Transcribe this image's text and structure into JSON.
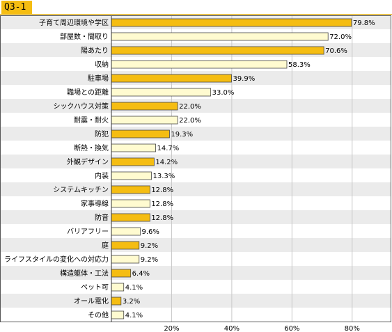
{
  "badge": "Q3-1",
  "colors": {
    "accent": "#f5bd12",
    "light": "#fffbd0",
    "band": "#ebebeb",
    "border": "#555555",
    "grid": "#c8c8c8"
  },
  "chart_data": {
    "type": "bar",
    "orientation": "horizontal",
    "title": "",
    "xlabel": "",
    "ylabel": "",
    "xlim": [
      0,
      90
    ],
    "xticks": [
      20,
      40,
      60,
      80
    ],
    "xtick_labels": [
      "20%",
      "40%",
      "60%",
      "80%"
    ],
    "grid": true,
    "categories": [
      "子育て周辺環境や学区",
      "部屋数・間取り",
      "陽あたり",
      "収納",
      "駐車場",
      "職場との距離",
      "シックハウス対策",
      "耐震・耐火",
      "防犯",
      "断熱・換気",
      "外観デザイン",
      "内装",
      "システムキッチン",
      "家事導線",
      "防音",
      "バリアフリー",
      "庭",
      "ライフスタイルの変化への対応力",
      "構造躯体・工法",
      "ペット可",
      "オール電化",
      "その他"
    ],
    "values": [
      79.8,
      72.0,
      70.6,
      58.3,
      39.9,
      33.0,
      22.0,
      22.0,
      19.3,
      14.7,
      14.2,
      13.3,
      12.8,
      12.8,
      12.8,
      9.6,
      9.2,
      9.2,
      6.4,
      4.1,
      3.2,
      4.1
    ],
    "value_labels": [
      "79.8%",
      "72.0%",
      "70.6%",
      "58.3%",
      "39.9%",
      "33.0%",
      "22.0%",
      "22.0%",
      "19.3%",
      "14.7%",
      "14.2%",
      "13.3%",
      "12.8%",
      "12.8%",
      "12.8%",
      "9.6%",
      "9.2%",
      "9.2%",
      "6.4%",
      "4.1%",
      "3.2%",
      "4.1%"
    ]
  }
}
